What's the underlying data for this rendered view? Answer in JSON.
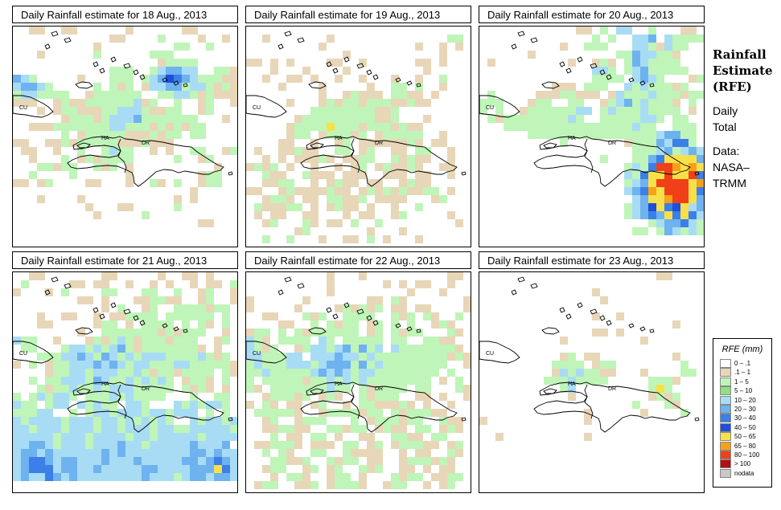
{
  "sidebar": {
    "heading_lines": [
      "Rainfall",
      "Estimate",
      "(RFE)"
    ],
    "period_lines": [
      "Daily",
      "Total"
    ],
    "source_lines": [
      "Data:",
      "NASA–",
      "TRMM"
    ]
  },
  "legend": {
    "title": "RFE (mm)",
    "items": [
      {
        "label": "0 – .1",
        "color": "#ffffff"
      },
      {
        "label": ".1 – 1",
        "color": "#e8d6b8"
      },
      {
        "label": "1 – 5",
        "color": "#bff5b8"
      },
      {
        "label": "5 – 10",
        "color": "#8fe07f"
      },
      {
        "label": "10 – 20",
        "color": "#a8dcf4"
      },
      {
        "label": "20 – 30",
        "color": "#6eb2ef"
      },
      {
        "label": "30 – 40",
        "color": "#3c7fe8"
      },
      {
        "label": "40 – 50",
        "color": "#1f4fd8"
      },
      {
        "label": "50 – 65",
        "color": "#f8e048"
      },
      {
        "label": "65 – 80",
        "color": "#f8a018"
      },
      {
        "label": "80 – 100",
        "color": "#f04018"
      },
      {
        "label": "> 100",
        "color": "#b01010"
      },
      {
        "label": "nodata",
        "color": "#c8c8c8"
      }
    ]
  },
  "country_labels": {
    "cuba": "CU",
    "haiti": "HA",
    "dominican_republic": "DR"
  },
  "panels": [
    {
      "title": "Daily Rainfall estimate for  18 Aug., 2013"
    },
    {
      "title": "Daily Rainfall estimate for  19 Aug., 2013"
    },
    {
      "title": "Daily Rainfall estimate for  20 Aug., 2013"
    },
    {
      "title": "Daily Rainfall estimate for  21 Aug., 2013"
    },
    {
      "title": "Daily Rainfall estimate for  22 Aug., 2013"
    },
    {
      "title": "Daily Rainfall estimate for  23 Aug., 2013"
    }
  ]
}
